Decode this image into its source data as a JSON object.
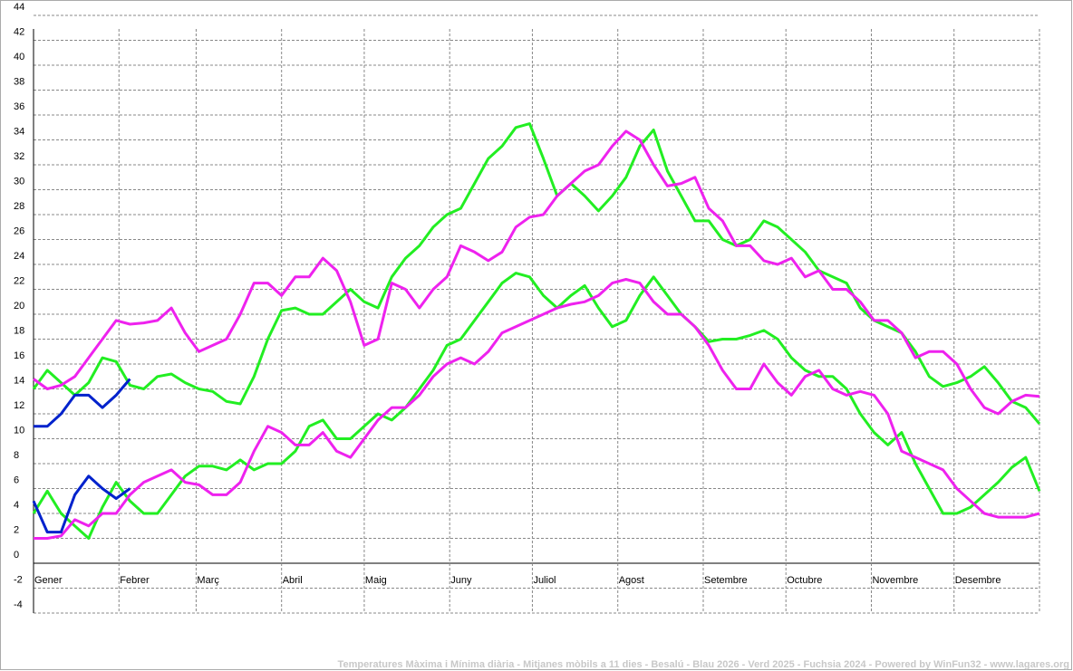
{
  "chart_data": {
    "type": "line",
    "title": "Temperatures Màxima i Mínima diària - Mitjanes mòbils a 11 dies - Besalú - Blau 2026 - Verd 2025 - Fuchsia 2024 - Powered by WinFun32 - www.lagares.org",
    "x": [
      0,
      5,
      10,
      15,
      20,
      25,
      30,
      35,
      40,
      45,
      50,
      55,
      60,
      65,
      70,
      75,
      80,
      85,
      90,
      95,
      100,
      105,
      110,
      115,
      120,
      125,
      130,
      135,
      140,
      145,
      150,
      155,
      160,
      165,
      170,
      175,
      180,
      185,
      190,
      195,
      200,
      205,
      210,
      215,
      220,
      225,
      230,
      235,
      240,
      245,
      250,
      255,
      260,
      265,
      270,
      275,
      280,
      285,
      290,
      295,
      300,
      305,
      310,
      315,
      320,
      325,
      330,
      335,
      340,
      345,
      350,
      355,
      360,
      365
    ],
    "xlim": [
      0,
      365
    ],
    "xticks": [
      {
        "value": 0,
        "label": "Gener"
      },
      {
        "value": 31,
        "label": "Febrer"
      },
      {
        "value": 59,
        "label": "Març"
      },
      {
        "value": 90,
        "label": "Abril"
      },
      {
        "value": 120,
        "label": "Maig"
      },
      {
        "value": 151,
        "label": "Juny"
      },
      {
        "value": 181,
        "label": "Juliol"
      },
      {
        "value": 212,
        "label": "Agost"
      },
      {
        "value": 243,
        "label": "Setembre"
      },
      {
        "value": 273,
        "label": "Octubre"
      },
      {
        "value": 304,
        "label": "Novembre"
      },
      {
        "value": 334,
        "label": "Desembre"
      }
    ],
    "ylim": [
      -4,
      44
    ],
    "yticks": [
      -4,
      -2,
      0,
      2,
      4,
      6,
      8,
      10,
      12,
      14,
      16,
      18,
      20,
      22,
      24,
      26,
      28,
      30,
      32,
      34,
      36,
      38,
      40,
      42,
      44
    ],
    "grid": true,
    "series": [
      {
        "color": "#22ee22",
        "values": [
          14,
          15.5,
          14.5,
          13.5,
          14.5,
          16.5,
          16.2,
          14.3,
          14,
          15,
          15.2,
          14.5,
          14,
          13.8,
          13,
          12.8,
          15,
          18,
          20.3,
          20.5,
          20,
          20,
          21,
          22,
          21,
          20.5,
          23,
          24.5,
          25.5,
          27,
          28,
          28.5,
          30.5,
          32.5,
          33.5,
          35,
          35.3,
          32.5,
          29.5,
          30.5,
          29.5,
          28.3,
          29.5,
          31,
          33.5,
          34.8,
          31.5,
          29.5,
          27.5,
          27.5,
          26,
          25.5,
          26,
          27.5,
          27,
          26,
          25,
          23.5,
          23,
          22.5,
          20.5,
          19.5,
          19,
          18.5,
          17,
          15,
          14.2,
          14.5,
          15,
          15.8,
          14.5,
          13,
          12.5,
          11.2
        ]
      },
      {
        "color": "#22ee22",
        "values": [
          4,
          5.8,
          4,
          3,
          2,
          4.5,
          6.5,
          5,
          4,
          4,
          5.5,
          7,
          7.8,
          7.8,
          7.5,
          8.3,
          7.5,
          8,
          8,
          9,
          11,
          11.5,
          10,
          10,
          11,
          12,
          11.5,
          12.5,
          14,
          15.5,
          17.5,
          18,
          19.5,
          21,
          22.5,
          23.3,
          23,
          21.5,
          20.5,
          21.5,
          22.3,
          20.5,
          19,
          19.5,
          21.5,
          23,
          21.5,
          20,
          19,
          17.8,
          18,
          18,
          18.3,
          18.7,
          18,
          16.5,
          15.5,
          15,
          15,
          14,
          12,
          10.5,
          9.5,
          10.5,
          8,
          6,
          4,
          4,
          4.5,
          5.5,
          6.5,
          7.7,
          8.5,
          5.8
        ]
      },
      {
        "color": "#ee22ee",
        "values": [
          14.8,
          14,
          14.3,
          15,
          16.5,
          18,
          19.5,
          19.2,
          19.3,
          19.5,
          20.5,
          18.5,
          17,
          17.5,
          18,
          20,
          22.5,
          22.5,
          21.5,
          23,
          23,
          24.5,
          23.5,
          21,
          17.5,
          18,
          22.5,
          22,
          20.5,
          22,
          23,
          25.5,
          25,
          24.3,
          25,
          27,
          27.8,
          28,
          29.5,
          30.5,
          31.5,
          32,
          33.5,
          34.7,
          34,
          32,
          30.3,
          30.5,
          31,
          28.5,
          27.5,
          25.5,
          25.5,
          24.3,
          24,
          24.5,
          23,
          23.5,
          22,
          22,
          21,
          19.5,
          19.5,
          18.5,
          16.5,
          17,
          17,
          16,
          14,
          12.5,
          12,
          13,
          13.5,
          13.4
        ]
      },
      {
        "color": "#ee22ee",
        "values": [
          2,
          2,
          2.2,
          3.5,
          3,
          4,
          4,
          5.5,
          6.5,
          7,
          7.5,
          6.5,
          6.3,
          5.5,
          5.5,
          6.5,
          9,
          11,
          10.5,
          9.5,
          9.5,
          10.5,
          9,
          8.5,
          10,
          11.5,
          12.5,
          12.5,
          13.5,
          15,
          16,
          16.5,
          16,
          17,
          18.5,
          19,
          19.5,
          20,
          20.5,
          20.8,
          21,
          21.5,
          22.5,
          22.8,
          22.5,
          21,
          20,
          20,
          19,
          17.5,
          15.5,
          14,
          14,
          16,
          14.5,
          13.5,
          15,
          15.5,
          14,
          13.5,
          13.8,
          13.5,
          12,
          9,
          8.5,
          8,
          7.5,
          6,
          5,
          4,
          3.7,
          3.7,
          3.7,
          4
        ]
      },
      {
        "color": "#0022cc",
        "values": [
          11,
          11,
          12,
          13.5,
          13.5,
          12.5,
          13.5,
          14.8,
          null,
          null,
          null,
          null,
          null,
          null,
          null,
          null,
          null,
          null,
          null,
          null,
          null,
          null,
          null,
          null,
          null,
          null,
          null,
          null,
          null,
          null,
          null,
          null,
          null,
          null,
          null,
          null,
          null,
          null,
          null,
          null,
          null,
          null,
          null,
          null,
          null,
          null,
          null,
          null,
          null,
          null,
          null,
          null,
          null,
          null,
          null,
          null,
          null,
          null,
          null,
          null,
          null,
          null,
          null,
          null,
          null,
          null,
          null,
          null,
          null,
          null,
          null,
          null,
          null,
          null
        ]
      },
      {
        "color": "#0022cc",
        "values": [
          5,
          2.5,
          2.5,
          5.5,
          7,
          6,
          5.2,
          6,
          null,
          null,
          null,
          null,
          null,
          null,
          null,
          null,
          null,
          null,
          null,
          null,
          null,
          null,
          null,
          null,
          null,
          null,
          null,
          null,
          null,
          null,
          null,
          null,
          null,
          null,
          null,
          null,
          null,
          null,
          null,
          null,
          null,
          null,
          null,
          null,
          null,
          null,
          null,
          null,
          null,
          null,
          null,
          null,
          null,
          null,
          null,
          null,
          null,
          null,
          null,
          null,
          null,
          null,
          null,
          null,
          null,
          null,
          null,
          null,
          null,
          null,
          null,
          null,
          null,
          null
        ]
      }
    ]
  }
}
